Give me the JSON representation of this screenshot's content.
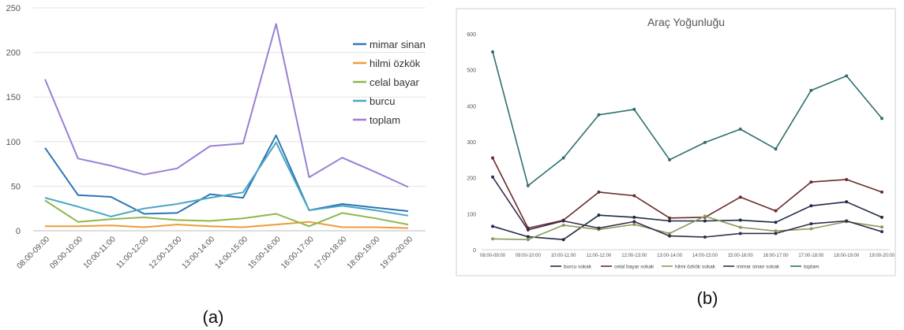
{
  "caption_a": "(a)",
  "caption_b": "(b)",
  "chart_data": [
    {
      "type": "line",
      "title": "",
      "xlabel": "",
      "ylabel": "",
      "ylim": [
        0,
        250
      ],
      "yticks": [
        "0",
        "50",
        "100",
        "150",
        "200",
        "250"
      ],
      "grid": "horizontal",
      "legend_position": "right",
      "categories": [
        "08:00-09:00",
        "09:00-10:00",
        "10:00-11:00",
        "11:00-12:00",
        "12:00-13:00",
        "13:00-14:00",
        "14:00-15:00",
        "15:00-16:00",
        "16:00-17:00",
        "17:00-18:00",
        "18:00-19:00",
        "19:00-20:00"
      ],
      "series": [
        {
          "name": "mimar sinan",
          "color": "#2e75b6",
          "values": [
            93,
            40,
            38,
            19,
            20,
            41,
            37,
            107,
            23,
            30,
            26,
            22
          ]
        },
        {
          "name": "hilmi özkök",
          "color": "#ed9b3a",
          "values": [
            5,
            5,
            6,
            4,
            7,
            5,
            4,
            7,
            10,
            4,
            4,
            3
          ]
        },
        {
          "name": "celal bayar",
          "color": "#8cb84b",
          "values": [
            34,
            10,
            13,
            15,
            12,
            11,
            14,
            19,
            5,
            20,
            14,
            7
          ]
        },
        {
          "name": "burcu",
          "color": "#4ba6c4",
          "values": [
            37,
            27,
            16,
            25,
            30,
            37,
            43,
            99,
            23,
            28,
            23,
            17
          ]
        },
        {
          "name": "toplam",
          "color": "#9a7fd4",
          "values": [
            170,
            81,
            73,
            63,
            70,
            95,
            98,
            232,
            60,
            82,
            66,
            49
          ]
        }
      ]
    },
    {
      "type": "line",
      "title": "Araç Yoğunluğu",
      "xlabel": "",
      "ylabel": "",
      "ylim": [
        0,
        600
      ],
      "yticks": [
        "0",
        "100",
        "200",
        "300",
        "400",
        "500",
        "600"
      ],
      "grid": "none",
      "legend_position": "bottom",
      "categories": [
        "08:00-09:00",
        "09:00-10:00",
        "10:00-11:00",
        "11:00-12:00",
        "12:00-13:00",
        "13:00-14:00",
        "14:00-15:00",
        "15:00-16:00",
        "16:00-17:00",
        "17:00-18:00",
        "18:00-19:00",
        "19:00-20:00"
      ],
      "series": [
        {
          "name": "burcu sokak",
          "color": "#1f2a44",
          "values": [
            65,
            36,
            28,
            96,
            90,
            80,
            80,
            82,
            76,
            122,
            133,
            90
          ]
        },
        {
          "name": "celal bayar sokak",
          "color": "#6b2a2a",
          "values": [
            255,
            60,
            82,
            160,
            150,
            88,
            90,
            146,
            108,
            188,
            195,
            160
          ]
        },
        {
          "name": "hilmi özkök sokak",
          "color": "#8a9a5b",
          "values": [
            30,
            28,
            68,
            56,
            70,
            45,
            93,
            62,
            52,
            58,
            78,
            63
          ]
        },
        {
          "name": "mimar sinan sokak",
          "color": "#3a2a4a",
          "values": [
            202,
            55,
            80,
            60,
            78,
            38,
            35,
            45,
            45,
            72,
            80,
            50
          ]
        },
        {
          "name": "toplam",
          "color": "#2f6f6f",
          "values": [
            550,
            178,
            255,
            375,
            390,
            250,
            298,
            335,
            280,
            443,
            483,
            365
          ]
        }
      ]
    }
  ]
}
